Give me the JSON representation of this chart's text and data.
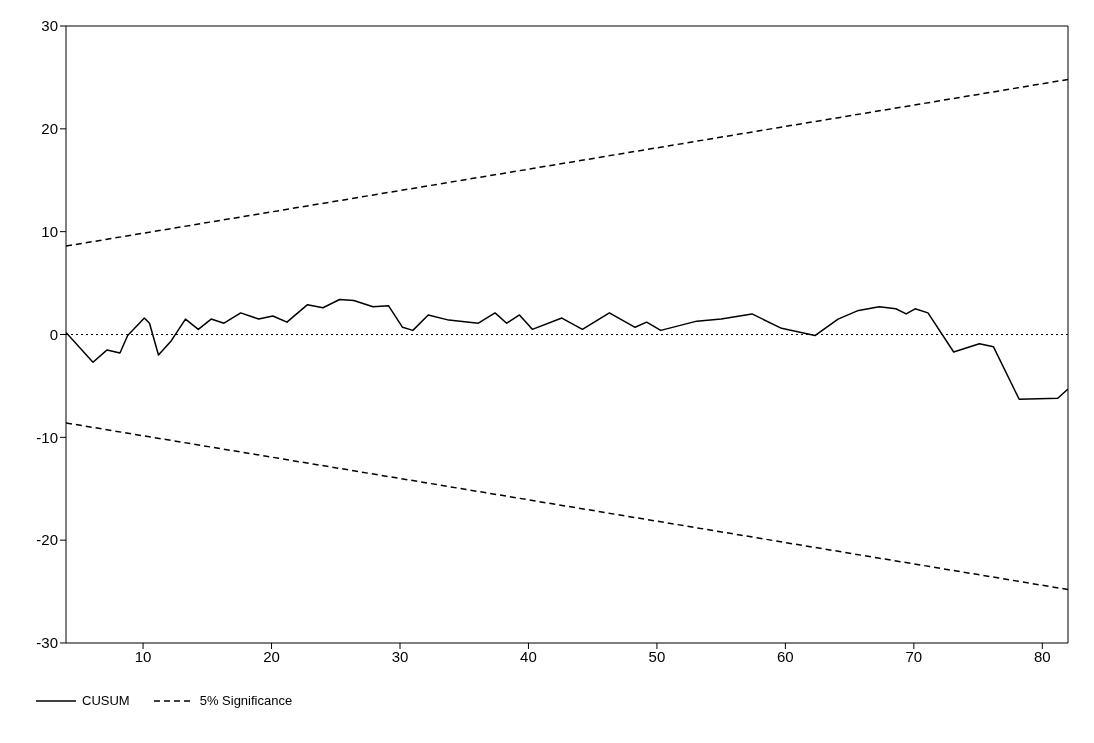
{
  "chart_data": {
    "type": "line",
    "xlim": [
      4,
      82
    ],
    "xticks": [
      10,
      20,
      30,
      40,
      50,
      60,
      70,
      80
    ],
    "ylim": [
      -30,
      30
    ],
    "yticks": [
      -30,
      -20,
      -10,
      0,
      10,
      20,
      30
    ],
    "grid": false,
    "legend": "bottom left",
    "marker": "none",
    "ref_lines": [
      {
        "axis": "y",
        "value": 0,
        "line_style": "dotted",
        "color": "#000000"
      }
    ],
    "series": [
      {
        "name": "CUSUM",
        "color": "#000000",
        "line_style": "solid",
        "x": [
          4,
          6.1,
          7.2,
          8.2,
          8.8,
          10.1,
          10.5,
          11.2,
          12.2,
          13.3,
          14.3,
          15.3,
          16.3,
          17.6,
          19.0,
          20.1,
          21.2,
          22.8,
          24.0,
          25.3,
          26.4,
          27.9,
          29.1,
          30.2,
          31.0,
          32.2,
          33.8,
          36.1,
          37.4,
          38.3,
          39.3,
          40.3,
          42.6,
          44.2,
          46.3,
          48.3,
          49.2,
          50.3,
          53.1,
          55.0,
          57.4,
          59.7,
          62.3,
          64.1,
          65.6,
          67.3,
          68.6,
          69.4,
          70.1,
          71.1,
          73.1,
          75.1,
          76.2,
          78.2,
          81.2,
          82
        ],
        "values": [
          0.2,
          -2.7,
          -1.5,
          -1.8,
          -0.1,
          1.6,
          1.1,
          -2.0,
          -0.6,
          1.5,
          0.5,
          1.5,
          1.1,
          2.1,
          1.5,
          1.8,
          1.2,
          2.9,
          2.6,
          3.4,
          3.3,
          2.7,
          2.8,
          0.7,
          0.4,
          1.9,
          1.4,
          1.1,
          2.1,
          1.1,
          1.9,
          0.5,
          1.6,
          0.5,
          2.1,
          0.7,
          1.2,
          0.4,
          1.3,
          1.5,
          2.0,
          0.6,
          -0.1,
          1.5,
          2.3,
          2.7,
          2.5,
          2.0,
          2.5,
          2.1,
          -1.7,
          -0.9,
          -1.2,
          -6.3,
          -6.2,
          -5.3
        ]
      },
      {
        "name": "5% Significance",
        "color": "#000000",
        "line_style": "dashed",
        "x": [
          4,
          82
        ],
        "values": [
          8.6,
          24.8
        ]
      },
      {
        "color": "#000000",
        "line_style": "dashed",
        "x": [
          4,
          82
        ],
        "values": [
          -8.6,
          -24.8
        ]
      }
    ]
  }
}
